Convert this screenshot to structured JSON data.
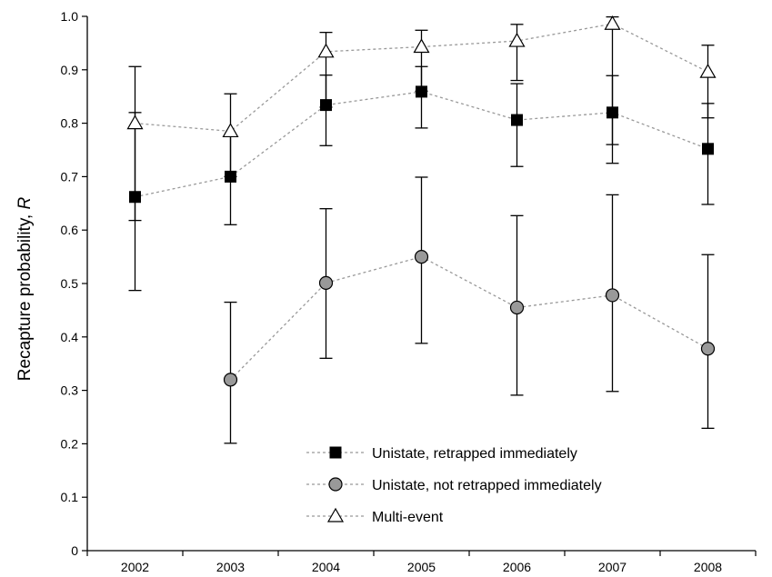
{
  "chart_data": {
    "type": "line",
    "x": [
      "2002",
      "2003",
      "2004",
      "2005",
      "2006",
      "2007",
      "2008"
    ],
    "ylabel_prefix": "Recapture probability, ",
    "ylabel_var": "R",
    "xlabel": "",
    "ylim": [
      0,
      1.0
    ],
    "yticks": [
      "0",
      "0.1",
      "0.2",
      "0.3",
      "0.4",
      "0.5",
      "0.6",
      "0.7",
      "0.8",
      "0.9",
      "1.0"
    ],
    "grid": false,
    "legend_position": "bottom-center",
    "series": [
      {
        "name": "Unistate, retrapped immediately",
        "marker": "square",
        "marker_fill": "#000000",
        "values": [
          0.662,
          0.7,
          0.834,
          0.859,
          0.806,
          0.82,
          0.752
        ],
        "lower": [
          0.487,
          0.61,
          0.758,
          0.791,
          0.719,
          0.725,
          0.648
        ],
        "upper": [
          0.82,
          0.778,
          0.89,
          0.906,
          0.874,
          0.889,
          0.837
        ]
      },
      {
        "name": "Unistate, not retrapped immediately",
        "marker": "circle",
        "marker_fill": "#999999",
        "values": [
          null,
          0.32,
          0.501,
          0.55,
          0.455,
          0.478,
          0.378
        ],
        "lower": [
          null,
          0.201,
          0.36,
          0.388,
          0.291,
          0.298,
          0.229
        ],
        "upper": [
          null,
          0.465,
          0.64,
          0.699,
          0.627,
          0.666,
          0.554
        ]
      },
      {
        "name": "Multi-event",
        "marker": "triangle",
        "marker_fill": "#ffffff",
        "values": [
          0.8,
          0.785,
          0.934,
          0.943,
          0.954,
          0.986,
          0.896
        ],
        "lower": [
          0.618,
          0.7,
          0.83,
          0.86,
          0.88,
          0.76,
          0.81
        ],
        "upper": [
          0.906,
          0.855,
          0.97,
          0.974,
          0.985,
          0.999,
          0.946
        ]
      }
    ],
    "colors": {
      "axis": "#000000",
      "connector": "#999999",
      "errorbar": "#000000",
      "marker_stroke": "#000000"
    }
  }
}
